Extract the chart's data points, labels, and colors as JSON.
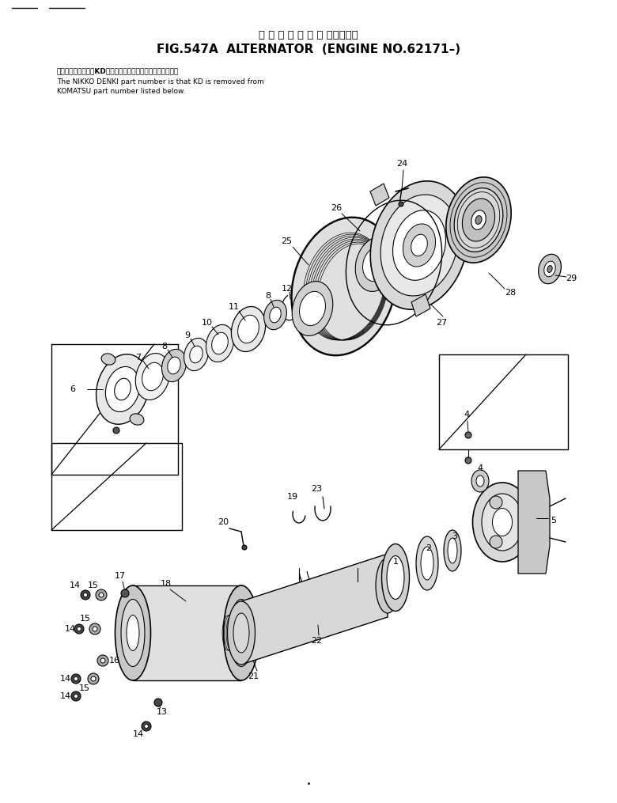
{
  "title_japanese": "オ ル タ ネ ー タ 　 該用号機．",
  "title_english": "FIG.547A  ALTERNATOR  (ENGINE NO.62171–)",
  "note_jp": "品番のメーカー記号KDを除いたものが日小電機の品番です。",
  "note_en1": "The NIKKO DENKI part number is that KD is removed from",
  "note_en2": "KOMATSU part number listed below.",
  "bg_color": "#ffffff"
}
